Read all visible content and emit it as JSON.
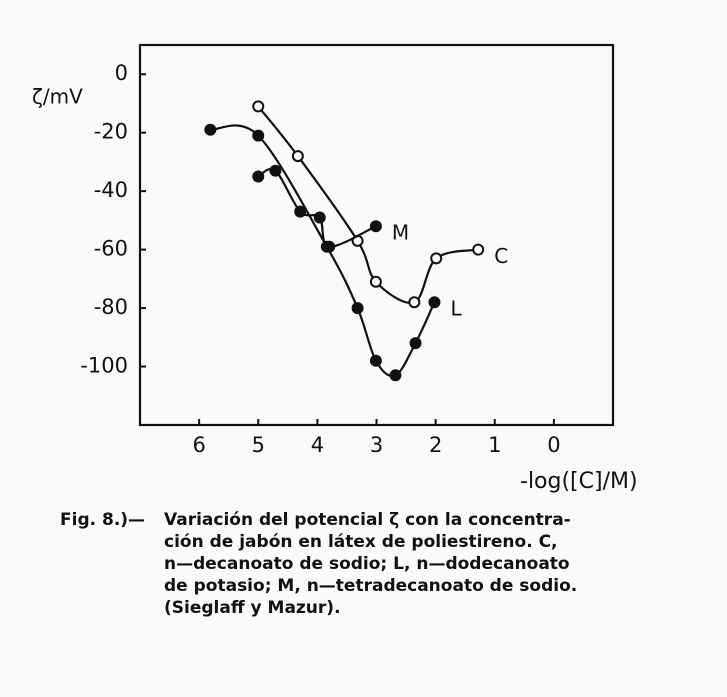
{
  "chart_data": {
    "type": "line",
    "ylabel": "ζ/mV",
    "xlabel": "-log([C]/M)",
    "xlim": [
      7,
      -1
    ],
    "xticks": [
      6,
      5,
      4,
      3,
      2,
      1,
      0
    ],
    "ylim": [
      -120,
      10
    ],
    "yticks": [
      0,
      -20,
      -40,
      -60,
      -80,
      -100
    ],
    "series": [
      {
        "name": "C",
        "color": "#111111",
        "marker": "open",
        "x": [
          5,
          4.33,
          3.32,
          3.01,
          2.36,
          1.99,
          1.28
        ],
        "values": [
          -11,
          -28,
          -57,
          -71,
          -78,
          -63,
          -60
        ]
      },
      {
        "name": "L",
        "color": "#111111",
        "marker": "filled",
        "x": [
          5.81,
          5,
          3.84,
          3.32,
          3.01,
          2.68,
          2.34,
          2.02
        ],
        "values": [
          -19,
          -21,
          -59,
          -80,
          -98,
          -103,
          -92,
          -78
        ]
      },
      {
        "name": "M",
        "color": "#111111",
        "marker": "filled",
        "x": [
          5,
          4.71,
          4.29,
          3.96,
          3.8,
          3.01
        ],
        "values": [
          -35,
          -33,
          -47,
          -49,
          -59,
          -52
        ]
      }
    ],
    "caption_label": "Fig. 8.)—",
    "caption_lines": [
      "Variación del potencial ζ con la concentra-",
      "ción de jabón en látex de poliestireno. C,",
      "n—decanoato de sodio; L, n—dodecanoato",
      "de potasio; M, n—tetradecanoato de sodio.",
      "(Sieglaff y Mazur)."
    ]
  }
}
